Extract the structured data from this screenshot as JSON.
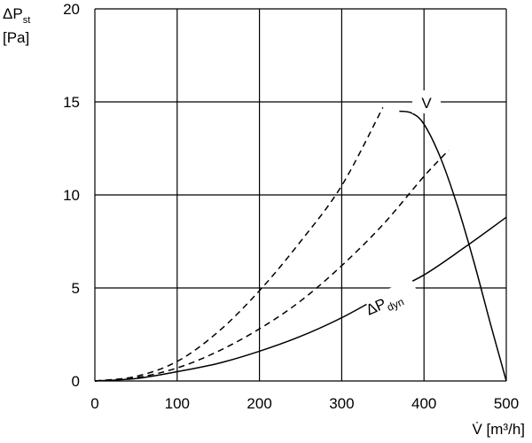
{
  "chart_data": {
    "type": "line",
    "title": "",
    "xlabel": "V̇ [m³/h]",
    "ylabel": "ΔP_st [Pa]",
    "ylabel_parts": {
      "line1_main": "ΔP",
      "line1_sub": "st",
      "line2": "[Pa]"
    },
    "xlim": [
      0,
      500
    ],
    "ylim": [
      0,
      20
    ],
    "xticks": [
      0,
      100,
      200,
      300,
      400,
      500
    ],
    "yticks": [
      0,
      5,
      10,
      15,
      20
    ],
    "grid": true,
    "legend": "none",
    "annotations": {
      "fan_curve_label": "V",
      "dyn_label_main": "ΔP",
      "dyn_label_sub": "dyn"
    },
    "series": [
      {
        "style": "solid",
        "x": [
          370,
          385,
          400,
          420,
          440,
          460,
          480,
          500
        ],
        "y": [
          14.5,
          14.4,
          13.8,
          12.0,
          9.5,
          6.5,
          3.2,
          0
        ]
      },
      {
        "name": "ΔP dyn",
        "style": "solid",
        "x": [
          0,
          50,
          100,
          150,
          200,
          250,
          300,
          350,
          400,
          450,
          500
        ],
        "y": [
          0,
          0.13,
          0.5,
          0.95,
          1.6,
          2.4,
          3.4,
          4.6,
          5.7,
          7.2,
          8.8
        ]
      },
      {
        "style": "dashed",
        "x": [
          0,
          50,
          100,
          150,
          200,
          250,
          300,
          350
        ],
        "y": [
          0,
          0.25,
          1.05,
          2.65,
          4.85,
          7.5,
          10.5,
          14.7
        ]
      },
      {
        "style": "dashed",
        "x": [
          0,
          50,
          100,
          150,
          200,
          250,
          300,
          350,
          400,
          430
        ],
        "y": [
          0,
          0.18,
          0.7,
          1.6,
          2.8,
          4.3,
          6.2,
          8.4,
          11.0,
          12.4
        ]
      }
    ]
  }
}
